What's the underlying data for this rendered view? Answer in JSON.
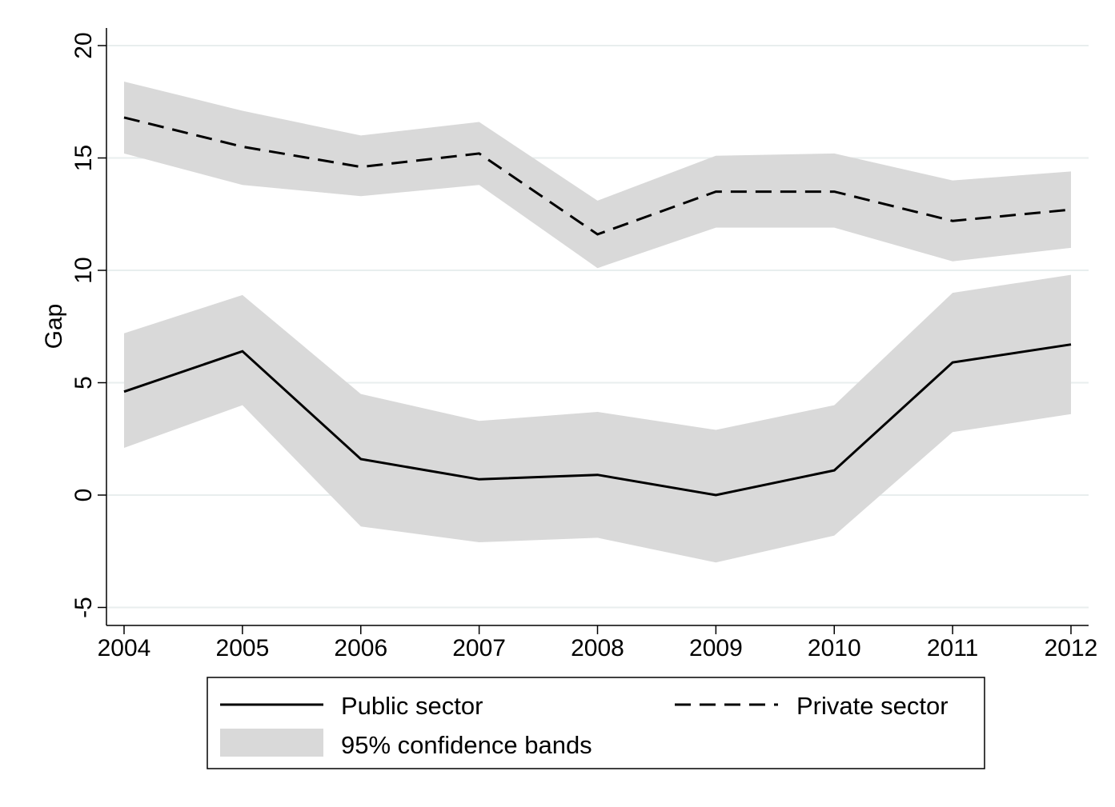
{
  "chart_data": {
    "type": "line",
    "title": "",
    "xlabel": "",
    "ylabel": "Gap",
    "x": [
      2004,
      2005,
      2006,
      2007,
      2008,
      2009,
      2010,
      2011,
      2012
    ],
    "ylim": [
      -5.8,
      20.8
    ],
    "yticks": [
      -5,
      0,
      5,
      10,
      15,
      20
    ],
    "xticks": [
      2004,
      2005,
      2006,
      2007,
      2008,
      2009,
      2010,
      2011,
      2012
    ],
    "grid": true,
    "legend_position": "bottom",
    "series": [
      {
        "name": "Public sector",
        "style": "solid",
        "values": [
          4.6,
          6.4,
          1.6,
          0.7,
          0.9,
          0.0,
          1.1,
          5.9,
          6.7
        ],
        "lower": [
          2.1,
          4.0,
          -1.4,
          -2.1,
          -1.9,
          -3.0,
          -1.8,
          2.8,
          3.6
        ],
        "upper": [
          7.2,
          8.9,
          4.5,
          3.3,
          3.7,
          2.9,
          4.0,
          9.0,
          9.8
        ]
      },
      {
        "name": "Private sector",
        "style": "dashed",
        "values": [
          16.8,
          15.5,
          14.6,
          15.2,
          11.6,
          13.5,
          13.5,
          12.2,
          12.7
        ],
        "lower": [
          15.2,
          13.8,
          13.3,
          13.8,
          10.1,
          11.9,
          11.9,
          10.4,
          11.0
        ],
        "upper": [
          18.4,
          17.1,
          16.0,
          16.6,
          13.1,
          15.1,
          15.2,
          14.0,
          14.4
        ]
      }
    ],
    "band_label": "95% confidence bands",
    "colors": {
      "line": "#000000",
      "band": "#d9d9d9",
      "grid": "#e8eeee",
      "axis": "#000000"
    }
  }
}
